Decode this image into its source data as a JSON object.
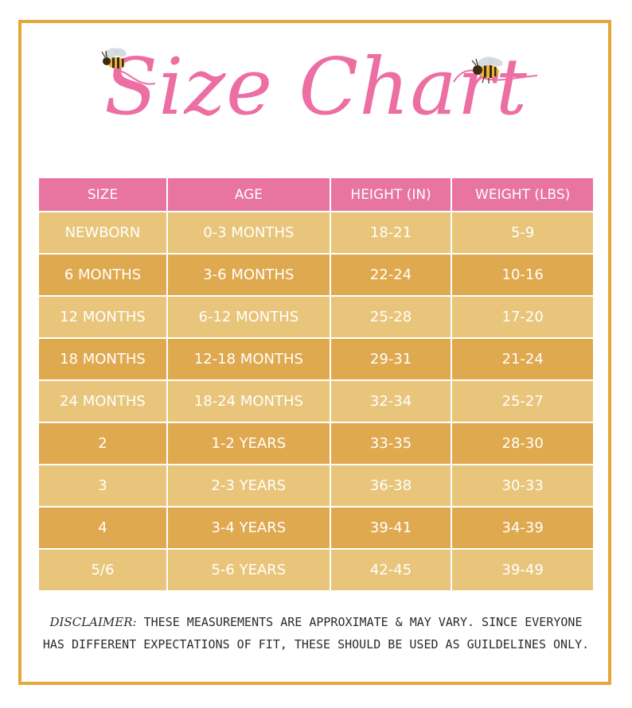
{
  "title": "Size Chart",
  "colors": {
    "border": "#e2a93a",
    "title_pink": "#ec6ea3",
    "header_pink": "#e8759f",
    "row_light": "#e8c57b",
    "row_dark": "#dfa94f"
  },
  "decorations": [
    "bee-icon",
    "bee-icon"
  ],
  "table": {
    "columns": [
      "SIZE",
      "AGE",
      "HEIGHT (IN)",
      "WEIGHT (LBS)"
    ],
    "rows": [
      [
        "NEWBORN",
        "0-3 MONTHS",
        "18-21",
        "5-9"
      ],
      [
        "6 MONTHS",
        "3-6 MONTHS",
        "22-24",
        "10-16"
      ],
      [
        "12 MONTHS",
        "6-12 MONTHS",
        "25-28",
        "17-20"
      ],
      [
        "18 MONTHS",
        "12-18 MONTHS",
        "29-31",
        "21-24"
      ],
      [
        "24 MONTHS",
        "18-24 MONTHS",
        "32-34",
        "25-27"
      ],
      [
        "2",
        "1-2 YEARS",
        "33-35",
        "28-30"
      ],
      [
        "3",
        "2-3 YEARS",
        "36-38",
        "30-33"
      ],
      [
        "4",
        "3-4 YEARS",
        "39-41",
        "34-39"
      ],
      [
        "5/6",
        "5-6 YEARS",
        "42-45",
        "39-49"
      ]
    ]
  },
  "disclaimer": {
    "label": "DISCLAIMER:",
    "line1": " THESE MEASUREMENTS ARE APPROXIMATE & MAY VARY. SINCE EVERYONE",
    "line2": "HAS DIFFERENT EXPECTATIONS OF FIT, THESE SHOULD BE USED AS GUILDELINES ONLY."
  }
}
